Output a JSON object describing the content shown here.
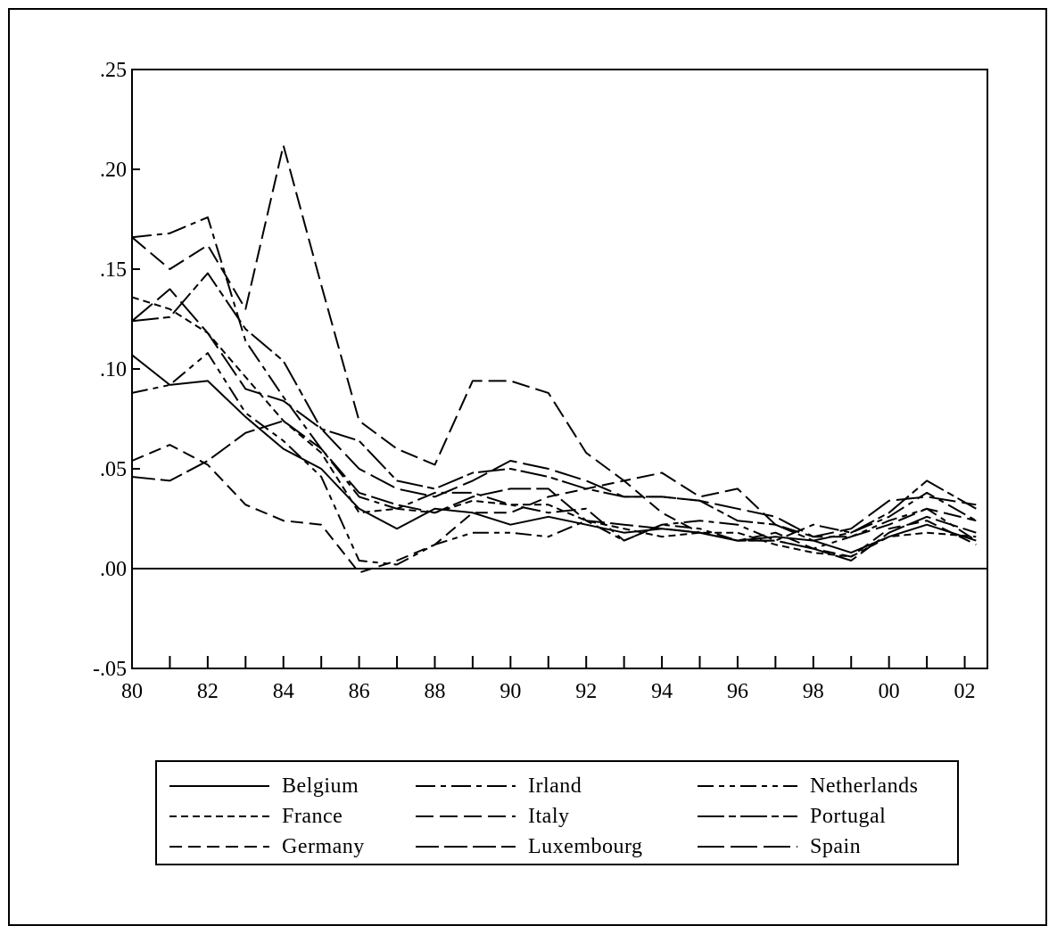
{
  "chart_data": {
    "type": "line",
    "title": "",
    "xlabel": "",
    "ylabel": "",
    "xlim": [
      1980,
      2002.6
    ],
    "ylim": [
      -0.05,
      0.25
    ],
    "x_ticks": [
      {
        "value": 1980,
        "label": "80"
      },
      {
        "value": 1982,
        "label": "82"
      },
      {
        "value": 1984,
        "label": "84"
      },
      {
        "value": 1986,
        "label": "86"
      },
      {
        "value": 1988,
        "label": "88"
      },
      {
        "value": 1990,
        "label": "90"
      },
      {
        "value": 1992,
        "label": "92"
      },
      {
        "value": 1994,
        "label": "94"
      },
      {
        "value": 1996,
        "label": "96"
      },
      {
        "value": 1998,
        "label": "98"
      },
      {
        "value": 2000,
        "label": "00"
      },
      {
        "value": 2002,
        "label": "02"
      }
    ],
    "y_ticks": [
      {
        "value": 0.25,
        "label": ".25"
      },
      {
        "value": 0.2,
        "label": ".20"
      },
      {
        "value": 0.15,
        "label": ".15"
      },
      {
        "value": 0.1,
        "label": ".10"
      },
      {
        "value": 0.05,
        "label": ".05"
      },
      {
        "value": 0.0,
        "label": ".00"
      },
      {
        "value": -0.05,
        "label": "-.05"
      }
    ],
    "zero_line": true,
    "grid": false,
    "legend_position": "bottom",
    "series": [
      {
        "name": "Belgium",
        "dash": "",
        "x": [
          1980,
          1981,
          1982,
          1983,
          1984,
          1985,
          1986,
          1987,
          1988,
          1989,
          1990,
          1991,
          1992,
          1993,
          1994,
          1995,
          1996,
          1997,
          1998,
          1999,
          2000,
          2001,
          2002.3
        ],
        "y": [
          0.107,
          0.092,
          0.094,
          0.076,
          0.06,
          0.05,
          0.03,
          0.02,
          0.03,
          0.028,
          0.022,
          0.026,
          0.022,
          0.018,
          0.02,
          0.018,
          0.014,
          0.016,
          0.014,
          0.008,
          0.016,
          0.022,
          0.014
        ]
      },
      {
        "name": "France",
        "dash": "8,5",
        "x": [
          1980,
          1981,
          1982,
          1983,
          1984,
          1985,
          1986,
          1987,
          1988,
          1989,
          1990,
          1991,
          1992,
          1993,
          1994,
          1995,
          1996,
          1997,
          1998,
          1999,
          2000,
          2001,
          2002.3
        ],
        "y": [
          0.136,
          0.13,
          0.118,
          0.096,
          0.074,
          0.058,
          0.028,
          0.03,
          0.028,
          0.034,
          0.032,
          0.032,
          0.024,
          0.02,
          0.016,
          0.018,
          0.018,
          0.012,
          0.008,
          0.006,
          0.016,
          0.018,
          0.016
        ]
      },
      {
        "name": "Germany",
        "dash": "14,7",
        "x": [
          1980,
          1981,
          1982,
          1983,
          1984,
          1985,
          1986,
          1987,
          1988,
          1989,
          1990,
          1991,
          1992,
          1993,
          1994,
          1995,
          1996,
          1997,
          1998,
          1999,
          2000,
          2001,
          2002.3
        ],
        "y": [
          0.054,
          0.062,
          0.052,
          0.032,
          0.024,
          0.022,
          -0.002,
          0.004,
          0.012,
          0.028,
          0.028,
          0.036,
          0.04,
          0.044,
          0.028,
          0.018,
          0.014,
          0.018,
          0.01,
          0.006,
          0.02,
          0.024,
          0.012
        ]
      },
      {
        "name": "Irland",
        "dash": "22,6,6,6",
        "x": [
          1980,
          1981,
          1982,
          1983,
          1984,
          1985,
          1986,
          1987,
          1988,
          1989,
          1990,
          1991,
          1992,
          1993,
          1994,
          1995,
          1996,
          1997,
          1998,
          1999,
          2000,
          2001,
          2002.3
        ],
        "y": [
          0.166,
          0.168,
          0.176,
          0.114,
          0.086,
          0.06,
          0.036,
          0.03,
          0.038,
          0.038,
          0.032,
          0.028,
          0.03,
          0.014,
          0.022,
          0.024,
          0.022,
          0.014,
          0.022,
          0.018,
          0.026,
          0.038,
          0.024
        ]
      },
      {
        "name": "Italy",
        "dash": "20,7",
        "x": [
          1980,
          1981,
          1982,
          1983,
          1984,
          1985,
          1986,
          1987,
          1988,
          1989,
          1990,
          1991,
          1992,
          1993,
          1994,
          1995,
          1996,
          1997,
          1998,
          1999,
          2000,
          2001,
          2002.3
        ],
        "y": [
          0.166,
          0.15,
          0.162,
          0.13,
          0.212,
          0.142,
          0.074,
          0.06,
          0.052,
          0.094,
          0.094,
          0.088,
          0.058,
          0.044,
          0.048,
          0.036,
          0.04,
          0.022,
          0.016,
          0.016,
          0.022,
          0.03,
          0.024
        ]
      },
      {
        "name": "Luxembourg",
        "dash": "26,6",
        "x": [
          1980,
          1981,
          1982,
          1983,
          1984,
          1985,
          1986,
          1987,
          1988,
          1989,
          1990,
          1991,
          1992,
          1993,
          1994,
          1995,
          1996,
          1997,
          1998,
          1999,
          2000,
          2001,
          2002.3
        ],
        "y": [
          0.046,
          0.044,
          0.054,
          0.068,
          0.074,
          0.06,
          0.038,
          0.032,
          0.028,
          0.036,
          0.04,
          0.04,
          0.024,
          0.022,
          0.02,
          0.018,
          0.014,
          0.014,
          0.01,
          0.004,
          0.018,
          0.026,
          0.018
        ]
      },
      {
        "name": "Netherlands",
        "dash": "18,6,6,6,6,6",
        "x": [
          1980,
          1981,
          1982,
          1983,
          1984,
          1985,
          1986,
          1987,
          1988,
          1989,
          1990,
          1991,
          1992,
          1993,
          1994,
          1995,
          1996,
          1997,
          1998,
          1999,
          2000,
          2001,
          2002.3
        ],
        "y": [
          0.088,
          0.092,
          0.108,
          0.078,
          0.064,
          0.046,
          0.004,
          0.002,
          0.012,
          0.018,
          0.018,
          0.016,
          0.024,
          0.014,
          0.022,
          0.02,
          0.014,
          0.014,
          0.01,
          0.016,
          0.024,
          0.03,
          0.014
        ]
      },
      {
        "name": "Portugal",
        "dash": "30,5,8,5",
        "x": [
          1980,
          1981,
          1982,
          1983,
          1984,
          1985,
          1986,
          1987,
          1988,
          1989,
          1990,
          1991,
          1992,
          1993,
          1994,
          1995,
          1996,
          1997,
          1998,
          1999,
          2000,
          2001,
          2002.3
        ],
        "y": [
          0.124,
          0.126,
          0.148,
          0.12,
          0.104,
          0.07,
          0.064,
          0.044,
          0.04,
          0.048,
          0.05,
          0.046,
          0.04,
          0.036,
          0.036,
          0.034,
          0.024,
          0.022,
          0.014,
          0.018,
          0.028,
          0.044,
          0.03
        ]
      },
      {
        "name": "Spain",
        "dash": "30,7",
        "x": [
          1980,
          1981,
          1982,
          1983,
          1984,
          1985,
          1986,
          1987,
          1988,
          1989,
          1990,
          1991,
          1992,
          1993,
          1994,
          1995,
          1996,
          1997,
          1998,
          1999,
          2000,
          2001,
          2002.3
        ],
        "y": [
          0.124,
          0.14,
          0.118,
          0.09,
          0.084,
          0.07,
          0.05,
          0.04,
          0.036,
          0.044,
          0.054,
          0.05,
          0.044,
          0.036,
          0.036,
          0.034,
          0.03,
          0.026,
          0.016,
          0.02,
          0.034,
          0.036,
          0.032
        ]
      }
    ]
  }
}
